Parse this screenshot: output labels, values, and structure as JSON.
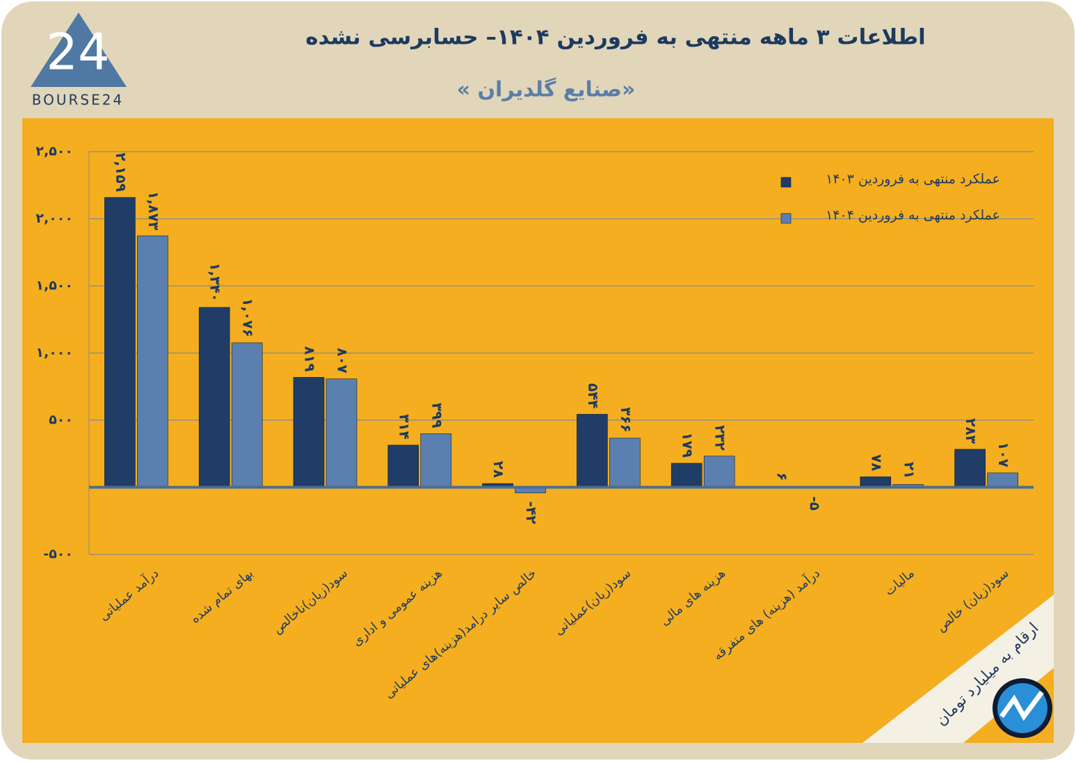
{
  "logo": "BOURSE24",
  "note": "ارقام به میلیارد تومان",
  "chart_data": {
    "type": "bar",
    "title": "اطلاعات ۳ ماهه منتهی به فروردین ۱۴۰۴– حسابرسی نشده",
    "subtitle": "« صنایع گلدیران»",
    "categories": [
      "درآمد عملیاتی",
      "بهای تمام شده",
      "سود(زیان)ناخالص",
      "هزینه عمومی و اداری",
      "خالص سایر درامد(هزینه)های عملیاتی",
      "سود(زیان)عملیاتی",
      "هزینه های مالی",
      "درآمد (هزینه) های متفرقه",
      "مالیات",
      "سود(زیان) خالص"
    ],
    "series": [
      {
        "name": "عملکرد منتهی به فروردین ۱۴۰۳",
        "color": "#1f3d66",
        "values": [
          2159,
          1340,
          819,
          314,
          28,
          544,
          179,
          6,
          78,
          283
        ],
        "value_labels": [
          "۲,۱۵۹",
          "۱,۳۴۰",
          "۸۱۹",
          "۳۱۴",
          "۲۸",
          "۵۴۴",
          "۱۷۹",
          "۶",
          "۷۸",
          "۲۸۳"
        ]
      },
      {
        "name": "عملکرد منتهی به فروردین ۱۴۰۴",
        "color": "#5b7faf",
        "values": [
          1873,
          1076,
          807,
          399,
          -42,
          366,
          232,
          -5,
          21,
          107
        ],
        "value_labels": [
          "۱,۸۷۳",
          "۱,۰۷۶",
          "۸۰۷",
          "۳۹۹",
          "-۴۲",
          "۳۶۶",
          "۲۳۲",
          "-۵",
          "۲۱",
          "۱۰۷"
        ]
      }
    ],
    "ylim": [
      -500,
      2500
    ],
    "yticks": [
      {
        "value": -500,
        "label": "-۵۰۰"
      },
      {
        "value": 500,
        "label": "۵۰۰"
      },
      {
        "value": 1000,
        "label": "۱,۰۰۰"
      },
      {
        "value": 1500,
        "label": "۱,۵۰۰"
      },
      {
        "value": 2000,
        "label": "۲,۰۰۰"
      },
      {
        "value": 2500,
        "label": "۲,۵۰۰"
      }
    ],
    "grid": true,
    "legend": "top-right"
  }
}
